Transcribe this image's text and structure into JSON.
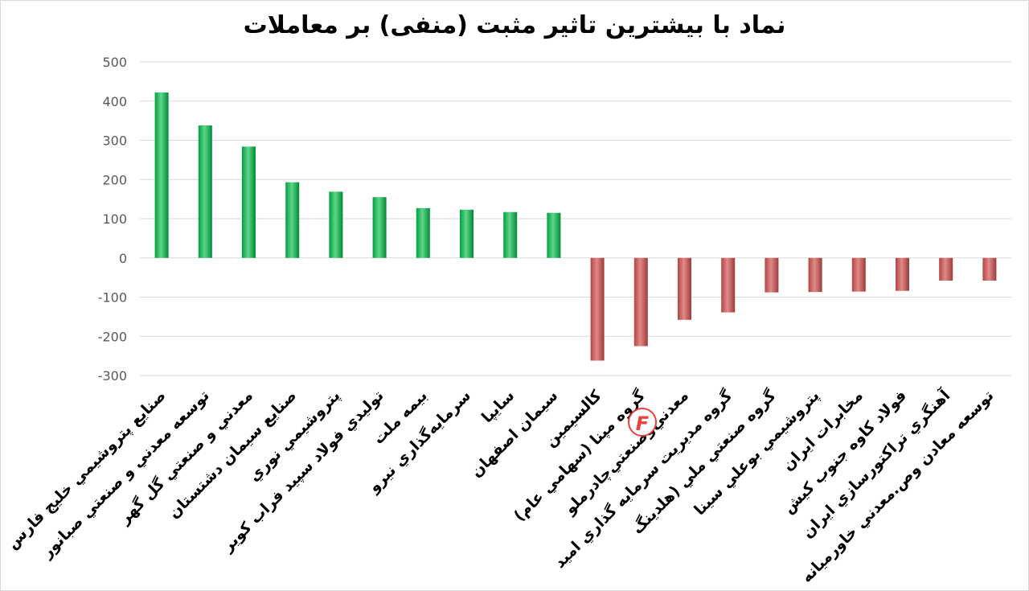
{
  "chart_data": {
    "type": "bar",
    "title": "نماد با بیشترین تاثیر مثبت (منفی) بر معاملات",
    "ylim": [
      -300,
      500
    ],
    "yticks": [
      500,
      400,
      300,
      200,
      100,
      0,
      -100,
      -200,
      -300
    ],
    "grid": true,
    "categories": [
      "صنايع پتروشيمي خليج فارس",
      "توسعه معدني و صنعتي صبانور",
      "معدني و صنعتي گل گهر",
      "صنايع سيمان دشتستان",
      "پتروشيمي نوري",
      "توليدي فولاد سپيد فراب كوير",
      "بيمه ملت",
      "سرمايه‌گذاري نيرو",
      "سايپا",
      "سيمان اصفهان",
      "كالسيمين",
      "گروه مپنا (سهامي عام)",
      "معدني‌وصنعتي‌چادرملو",
      "گروه مديريت سرمايه گذاري اميد",
      "گروه صنعتي ملي (هلدينگ",
      "پتروشيمي بوعلي سينا",
      "مخابرات ايران",
      "فولاد كاوه جنوب كيش",
      "آهنگري تراكتورسازي ايران",
      "توسعه معادن وص.معدني خاورميانه"
    ],
    "values": [
      422,
      338,
      284,
      193,
      169,
      155,
      127,
      123,
      117,
      115,
      -262,
      -225,
      -158,
      -139,
      -88,
      -87,
      -86,
      -84,
      -58,
      -58
    ],
    "colors": {
      "positive": "#00b050",
      "negative": "#c0504d"
    }
  },
  "watermark": {
    "text": "F",
    "color": "#e53935"
  }
}
